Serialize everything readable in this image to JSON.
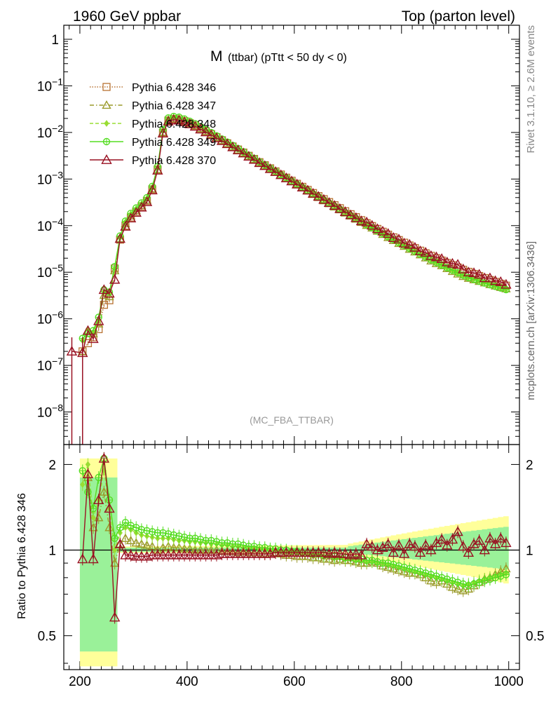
{
  "header": {
    "left": "1960 GeV ppbar",
    "right": "Top (parton level)"
  },
  "side_labels": {
    "top": "Rivet 3.1.10, ≥ 2.6M events",
    "bottom": "mcplots.cern.ch [arXiv:1306.3436]"
  },
  "chart_data": {
    "type": "line",
    "title": "M",
    "subtitle": "(ttbar) (pTtt < 50 dy < 0)",
    "analysis": "(MC_FBA_TTBAR)",
    "xlabel": "",
    "ylabel": "",
    "ratio_ylabel": "Ratio to Pythia 6.428 346",
    "xlim": [
      170,
      1020
    ],
    "ylim": [
      2e-09,
      2
    ],
    "yscale": "log",
    "ratio_ylim": [
      0.38,
      2.35
    ],
    "ratio_yscale": "log",
    "x_ticks": [
      "200",
      "400",
      "600",
      "800",
      "1000"
    ],
    "y_ticks": [
      "1",
      "10^-1",
      "10^-2",
      "10^-3",
      "10^-4",
      "10^-5",
      "10^-6",
      "10^-7",
      "10^-8"
    ],
    "ratio_ticks": [
      "2",
      "1",
      "0.5"
    ],
    "legend_position": "top-left",
    "x": [
      185,
      205,
      215,
      225,
      235,
      245,
      255,
      265,
      275,
      285,
      295,
      305,
      315,
      325,
      335,
      345,
      355,
      365,
      375,
      385,
      395,
      405,
      415,
      425,
      435,
      445,
      455,
      465,
      475,
      485,
      495,
      505,
      515,
      525,
      535,
      545,
      555,
      565,
      575,
      585,
      595,
      605,
      615,
      625,
      635,
      645,
      655,
      665,
      675,
      685,
      695,
      705,
      715,
      725,
      735,
      745,
      755,
      765,
      775,
      785,
      795,
      805,
      815,
      825,
      835,
      845,
      855,
      865,
      875,
      885,
      895,
      905,
      915,
      925,
      935,
      945,
      955,
      965,
      975,
      985,
      995
    ],
    "series": [
      {
        "name": "Pythia 6.428 346",
        "color": "#b87333",
        "marker": "square",
        "line": "dotted",
        "values": [
          null,
          2e-07,
          3e-07,
          4e-07,
          6e-07,
          2e-06,
          2.5e-06,
          1.2e-05,
          5e-05,
          0.0001,
          0.00015,
          0.0002,
          0.00026,
          0.00034,
          0.0006,
          0.0016,
          0.01,
          0.018,
          0.0195,
          0.019,
          0.0175,
          0.0158,
          0.014,
          0.0122,
          0.0106,
          0.0092,
          0.0079,
          0.0068,
          0.00585,
          0.005,
          0.0043,
          0.0037,
          0.00315,
          0.0027,
          0.0023,
          0.00198,
          0.0017,
          0.00146,
          0.00125,
          0.00107,
          0.00092,
          0.00079,
          0.00068,
          0.000585,
          0.0005,
          0.00043,
          0.00037,
          0.00032,
          0.000275,
          0.000237,
          0.000204,
          0.000176,
          0.000152,
          0.000131,
          0.000113,
          9.8e-05,
          8.5e-05,
          7.4e-05,
          6.4e-05,
          5.6e-05,
          4.9e-05,
          4.3e-05,
          3.75e-05,
          3.3e-05,
          2.9e-05,
          2.55e-05,
          2.25e-05,
          2e-05,
          1.78e-05,
          1.58e-05,
          1.41e-05,
          1.26e-05,
          1.13e-05,
          1.02e-05,
          9.2e-06,
          8.3e-06,
          7.5e-06,
          6.8e-06,
          6.2e-06,
          5.65e-06,
          5.15e-06
        ]
      },
      {
        "name": "Pythia 6.428 347",
        "color": "#9a9a2a",
        "marker": "triangle",
        "line": "dashdot"
      },
      {
        "name": "Pythia 6.428 348",
        "color": "#99dd33",
        "marker": "diamond",
        "line": "dashed"
      },
      {
        "name": "Pythia 6.428 349",
        "color": "#55dd22",
        "marker": "circle-plus",
        "line": "solid"
      },
      {
        "name": "Pythia 6.428 370",
        "color": "#991122",
        "marker": "triangle-open",
        "line": "solid"
      }
    ],
    "ratios": {
      "Pythia 6.428 347": [
        null,
        null,
        1.8,
        1.2,
        1.3,
        1.6,
        1.2,
        0.9,
        1.05,
        1.1,
        1.08,
        1.06,
        1.05,
        1.04,
        1.03,
        1.0,
        1.02,
        1.03,
        1.02,
        1.02,
        1.01,
        1.01,
        1.0,
        1.0,
        1.0,
        1.0,
        1.0,
        0.99,
        0.99,
        0.99,
        0.98,
        0.99,
        0.98,
        0.98,
        0.98,
        0.97,
        0.98,
        0.98,
        0.97,
        0.96,
        0.96,
        0.95,
        0.95,
        0.95,
        0.94,
        0.94,
        0.93,
        0.93,
        0.92,
        0.93,
        0.92,
        0.92,
        0.91,
        0.9,
        0.9,
        0.91,
        0.9,
        0.88,
        0.87,
        0.86,
        0.85,
        0.84,
        0.83,
        0.83,
        0.82,
        0.8,
        0.78,
        0.77,
        0.78,
        0.76,
        0.74,
        0.73,
        0.72,
        0.73,
        0.75,
        0.77,
        0.79,
        0.8,
        0.82,
        0.84,
        0.86
      ],
      "Pythia 6.428 348": [
        null,
        1.7,
        2.0,
        1.3,
        1.5,
        1.9,
        1.4,
        1.0,
        1.15,
        1.2,
        1.18,
        1.15,
        1.13,
        1.12,
        1.11,
        1.1,
        1.1,
        1.1,
        1.09,
        1.08,
        1.08,
        1.07,
        1.07,
        1.06,
        1.06,
        1.05,
        1.05,
        1.04,
        1.04,
        1.03,
        1.03,
        1.02,
        1.02,
        1.02,
        1.01,
        1.01,
        1.0,
        1.0,
        0.99,
        0.99,
        0.98,
        0.98,
        0.97,
        0.97,
        0.96,
        0.96,
        0.95,
        0.95,
        0.94,
        0.94,
        0.93,
        0.93,
        0.92,
        0.92,
        0.91,
        0.91,
        0.9,
        0.9,
        0.89,
        0.88,
        0.87,
        0.86,
        0.85,
        0.84,
        0.83,
        0.82,
        0.81,
        0.8,
        0.79,
        0.78,
        0.77,
        0.76,
        0.75,
        0.76,
        0.77,
        0.78,
        0.79,
        0.8,
        0.81,
        0.82,
        0.83
      ],
      "Pythia 6.428 349": [
        null,
        1.9,
        1.6,
        1.4,
        1.8,
        2.1,
        1.5,
        1.1,
        1.2,
        1.25,
        1.22,
        1.2,
        1.18,
        1.17,
        1.16,
        1.15,
        1.15,
        1.14,
        1.13,
        1.12,
        1.11,
        1.1,
        1.1,
        1.09,
        1.08,
        1.08,
        1.07,
        1.06,
        1.06,
        1.05,
        1.05,
        1.04,
        1.03,
        1.03,
        1.02,
        1.02,
        1.01,
        1.01,
        1.0,
        1.0,
        0.99,
        0.99,
        0.98,
        0.98,
        0.97,
        0.97,
        0.96,
        0.96,
        0.95,
        0.95,
        0.94,
        0.94,
        0.93,
        0.93,
        0.92,
        0.92,
        0.91,
        0.9,
        0.9,
        0.89,
        0.88,
        0.87,
        0.86,
        0.85,
        0.84,
        0.83,
        0.82,
        0.81,
        0.8,
        0.79,
        0.78,
        0.77,
        0.76,
        0.75,
        0.76,
        0.77,
        0.78,
        0.79,
        0.8,
        0.81,
        0.82
      ],
      "Pythia 6.428 370": [
        null,
        0.93,
        1.85,
        0.93,
        1.5,
        2.1,
        1.4,
        0.58,
        1.05,
        0.96,
        0.96,
        0.95,
        0.95,
        0.95,
        0.96,
        0.96,
        0.96,
        0.96,
        0.96,
        0.96,
        0.96,
        0.96,
        0.96,
        0.96,
        0.96,
        0.96,
        0.96,
        0.97,
        0.97,
        0.97,
        0.97,
        0.97,
        0.97,
        0.97,
        0.97,
        0.97,
        0.97,
        0.98,
        0.98,
        0.98,
        0.98,
        0.98,
        0.98,
        0.98,
        0.98,
        0.98,
        0.98,
        0.97,
        0.98,
        0.97,
        0.97,
        0.96,
        0.97,
        0.96,
        1.05,
        1.03,
        1.0,
        1.02,
        1.05,
        0.98,
        1.04,
        0.97,
        1.05,
        1.03,
        0.98,
        1.04,
        1.0,
        1.06,
        1.09,
        1.04,
        1.09,
        1.16,
        1.03,
        0.98,
        1.05,
        1.08,
        1.0,
        1.1,
        1.05,
        1.1,
        1.06
      ]
    }
  }
}
